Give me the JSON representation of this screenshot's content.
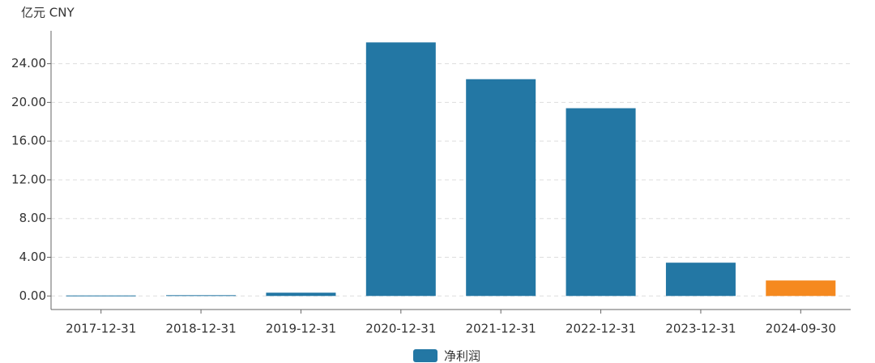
{
  "chart_data": {
    "type": "bar",
    "y_axis_label": "亿元 CNY",
    "categories": [
      "2017-12-31",
      "2018-12-31",
      "2019-12-31",
      "2020-12-31",
      "2021-12-31",
      "2022-12-31",
      "2023-12-31",
      "2024-09-30"
    ],
    "series": [
      {
        "name": "净利润",
        "color": "#2377a4",
        "bar_colors": [
          "#2377a4",
          "#2377a4",
          "#2377a4",
          "#2377a4",
          "#2377a4",
          "#2377a4",
          "#2377a4",
          "#f5891f"
        ],
        "values": [
          0.05,
          0.08,
          0.34,
          26.2,
          22.4,
          19.4,
          3.44,
          1.6
        ]
      }
    ],
    "ylim": [
      -1.4,
      27.4
    ],
    "yticks": [
      {
        "value": 0,
        "label": "0.00"
      },
      {
        "value": 4,
        "label": "4.00"
      },
      {
        "value": 8,
        "label": "8.00"
      },
      {
        "value": 12,
        "label": "12.00"
      },
      {
        "value": 16,
        "label": "16.00"
      },
      {
        "value": 20,
        "label": "20.00"
      },
      {
        "value": 24,
        "label": "24.00"
      }
    ],
    "grid": true
  }
}
